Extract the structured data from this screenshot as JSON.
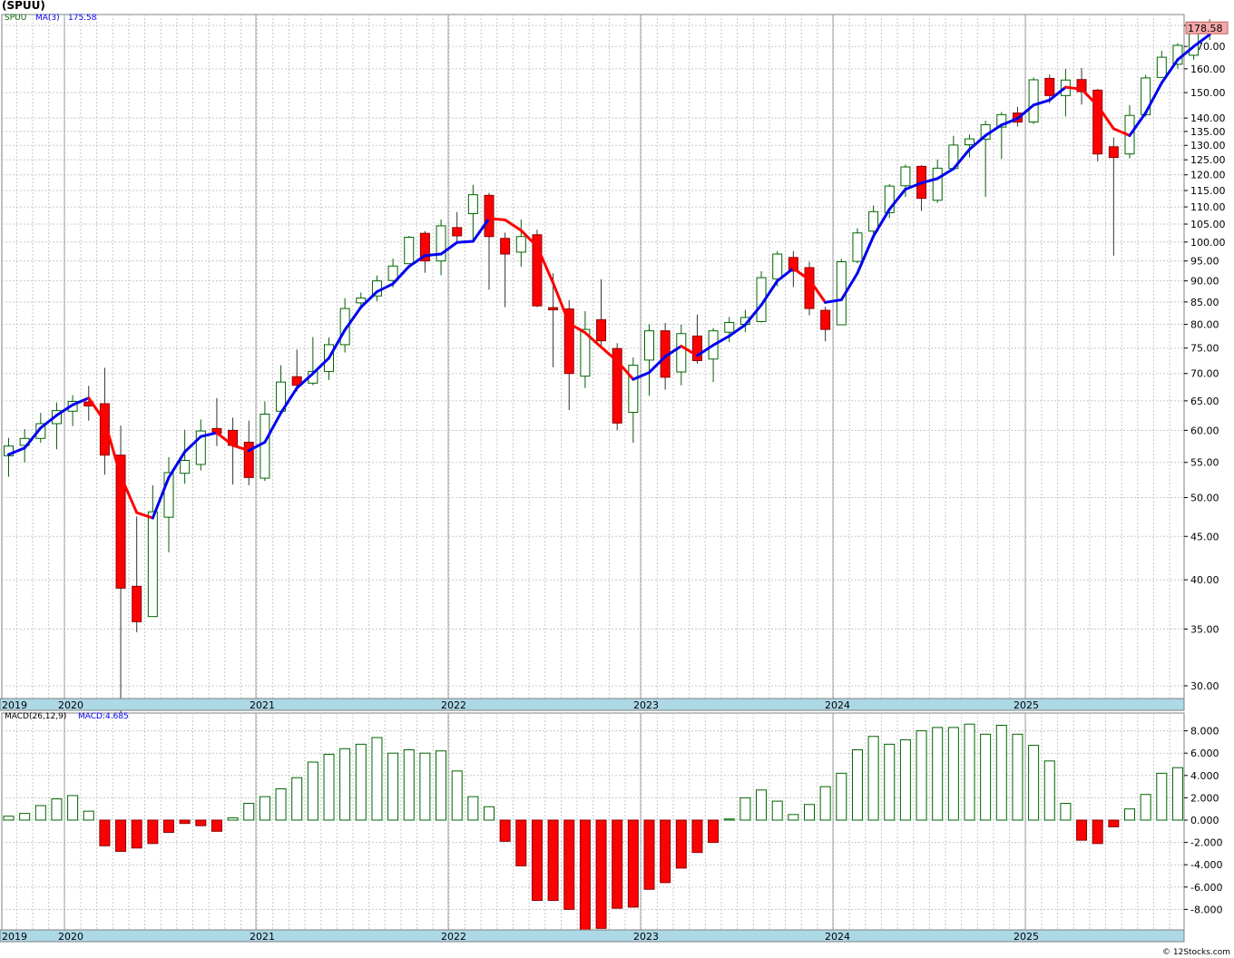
{
  "header": {
    "title": "(SPUU)",
    "ticker": "SPUU",
    "ma_label": "MA(3)",
    "ma_value": "175.58",
    "macd_label": "MACD(26,12,9)",
    "macd_value": "MACD:4.685",
    "last_price_label": "178.58",
    "copyright": "© 12Stocks.com"
  },
  "colors": {
    "up_candle_border": "#006400",
    "down_candle": "#ff0000",
    "ma_up": "#0000ee",
    "ma_down": "#ff0000",
    "grid": "#c8c8c8",
    "axis_band": "#add8e6",
    "price_tag": "#f4a8a8"
  },
  "chart_data": [
    {
      "type": "candlestick",
      "title": "(SPUU)",
      "scale": "log",
      "grid": true,
      "ylim": [
        28,
        185
      ],
      "y_ticks": [
        30,
        35,
        40,
        45,
        50,
        55,
        60,
        65,
        70,
        75,
        80,
        85,
        90,
        95,
        100,
        105,
        110,
        115,
        120,
        125,
        130,
        135,
        140,
        150,
        160,
        170,
        180
      ],
      "y_tick_labels": [
        "30.00",
        "35.00",
        "40.00",
        "45.00",
        "50.00",
        "55.00",
        "60.00",
        "65.00",
        "70.00",
        "75.00",
        "80.00",
        "85.00",
        "90.00",
        "95.00",
        "100.00",
        "105.00",
        "110.00",
        "115.00",
        "120.00",
        "125.00",
        "130.00",
        "135.00",
        "140.00",
        "150.00",
        "160.00",
        "170.00",
        "180.00"
      ],
      "x_labels": [
        "2019",
        "2020",
        "2021",
        "2022",
        "2023",
        "2024",
        "2025"
      ],
      "x_label_months": [
        -1,
        1,
        25,
        49,
        73,
        97,
        121
      ],
      "months": 146,
      "candles": [
        [
          1,
          56.0,
          57.5,
          58.8,
          52.9
        ],
        [
          2,
          57.6,
          58.7,
          60.2,
          55.0
        ],
        [
          3,
          58.7,
          61.1,
          62.9,
          58.0
        ],
        [
          4,
          61.1,
          63.3,
          64.7,
          57.0
        ],
        [
          5,
          63.2,
          64.9,
          66.0,
          60.7
        ],
        [
          6,
          64.8,
          64.1,
          67.7,
          61.6
        ],
        [
          7,
          64.5,
          56.1,
          71.1,
          53.2
        ],
        [
          8,
          56.1,
          39.1,
          60.8,
          27.8
        ],
        [
          9,
          39.3,
          35.7,
          47.5,
          34.7
        ],
        [
          10,
          36.2,
          48.1,
          51.7,
          45.0
        ],
        [
          11,
          47.4,
          53.5,
          55.8,
          43.1
        ],
        [
          12,
          53.4,
          55.3,
          60.1,
          51.9
        ],
        [
          13,
          54.7,
          59.9,
          61.8,
          53.8
        ],
        [
          14,
          60.3,
          59.5,
          65.5,
          57.5
        ],
        [
          15,
          60.0,
          57.6,
          62.1,
          51.8
        ],
        [
          16,
          58.1,
          52.8,
          61.6,
          51.7
        ],
        [
          17,
          52.7,
          62.7,
          64.9,
          52.3
        ],
        [
          18,
          63.2,
          68.4,
          71.6,
          62.9
        ],
        [
          19,
          69.4,
          67.8,
          74.7,
          66.7
        ],
        [
          20,
          68.2,
          70.4,
          77.3,
          67.8
        ],
        [
          21,
          70.4,
          75.7,
          77.2,
          68.8
        ],
        [
          22,
          75.7,
          83.5,
          85.9,
          74.1
        ],
        [
          23,
          84.8,
          85.9,
          87.2,
          83.4
        ],
        [
          24,
          86.4,
          90.0,
          91.3,
          85.2
        ],
        [
          25,
          90.1,
          93.7,
          95.6,
          88.4
        ],
        [
          26,
          94.3,
          101.3,
          101.7,
          94.7
        ],
        [
          27,
          102.4,
          95.0,
          103.0,
          92.0
        ],
        [
          28,
          95.0,
          104.5,
          106.3,
          91.4
        ],
        [
          29,
          104.0,
          101.7,
          108.5,
          100.2
        ],
        [
          30,
          108.0,
          113.7,
          116.8,
          100.4
        ],
        [
          31,
          113.5,
          101.5,
          114.3,
          87.9
        ],
        [
          32,
          101.0,
          96.8,
          102.6,
          83.8
        ],
        [
          33,
          97.3,
          101.5,
          106.3,
          93.5
        ],
        [
          34,
          102.0,
          84.1,
          103.4,
          83.8
        ],
        [
          35,
          83.7,
          83.2,
          91.9,
          71.2
        ],
        [
          36,
          83.4,
          70.0,
          85.4,
          63.4
        ],
        [
          37,
          69.5,
          78.9,
          82.9,
          67.3
        ],
        [
          38,
          81.0,
          76.5,
          90.4,
          75.1
        ],
        [
          39,
          74.9,
          61.2,
          76.0,
          60.0
        ],
        [
          40,
          63.0,
          71.6,
          73.1,
          58.0
        ],
        [
          41,
          72.6,
          78.6,
          80.0,
          65.9
        ],
        [
          42,
          78.6,
          69.3,
          80.3,
          67.0
        ],
        [
          43,
          70.3,
          78.0,
          79.9,
          67.8
        ],
        [
          44,
          77.5,
          72.5,
          82.1,
          71.9
        ],
        [
          45,
          72.8,
          78.6,
          79.2,
          68.4
        ],
        [
          46,
          78.3,
          80.4,
          81.6,
          76.2
        ],
        [
          47,
          80.0,
          81.5,
          83.2,
          78.3
        ],
        [
          48,
          80.6,
          90.8,
          92.4,
          80.4
        ],
        [
          49,
          90.5,
          96.8,
          97.6,
          88.7
        ],
        [
          50,
          95.9,
          92.4,
          97.6,
          88.5
        ],
        [
          51,
          93.3,
          83.5,
          94.8,
          82.0
        ],
        [
          52,
          83.1,
          78.9,
          83.9,
          76.4
        ],
        [
          53,
          79.9,
          94.8,
          95.5,
          79.9
        ],
        [
          54,
          94.9,
          102.5,
          103.8,
          94.4
        ],
        [
          55,
          103.0,
          108.6,
          110.4,
          102.0
        ],
        [
          56,
          108.3,
          116.4,
          117.0,
          106.7
        ],
        [
          57,
          116.5,
          122.6,
          123.4,
          113.0
        ],
        [
          58,
          122.8,
          112.6,
          123.2,
          108.8
        ],
        [
          59,
          112.0,
          122.2,
          125.1,
          111.2
        ],
        [
          60,
          122.1,
          130.1,
          133.4,
          121.4
        ],
        [
          61,
          130.2,
          132.3,
          133.9,
          125.8
        ],
        [
          62,
          132.2,
          137.5,
          139.0,
          113.0
        ],
        [
          63,
          136.6,
          141.3,
          142.3,
          125.3
        ],
        [
          64,
          141.9,
          138.5,
          144.3,
          136.8
        ],
        [
          65,
          138.5,
          155.3,
          156.3,
          137.8
        ],
        [
          66,
          155.9,
          148.8,
          157.5,
          145.7
        ],
        [
          67,
          148.8,
          155.2,
          159.9,
          140.6
        ],
        [
          68,
          155.4,
          150.4,
          160.4,
          145.2
        ],
        [
          69,
          151.0,
          127.0,
          151.5,
          124.5
        ],
        [
          70,
          129.5,
          125.8,
          132.8,
          96.4
        ],
        [
          71,
          127.0,
          141.0,
          145.0,
          125.5
        ],
        [
          72,
          141.3,
          156.1,
          157.4,
          140.6
        ],
        [
          73,
          156.3,
          165.1,
          168.0,
          156.2
        ],
        [
          74,
          162.0,
          170.5,
          171.5,
          160.0
        ],
        [
          75,
          166.0,
          181.0,
          182.0,
          164.0
        ],
        [
          76,
          178.0,
          178.6,
          183.0,
          173.0
        ]
      ],
      "candle_month_offset": 0,
      "ma_points": [
        [
          0,
          56.2
        ],
        [
          1,
          57.2
        ],
        [
          2,
          60.4
        ],
        [
          3,
          62.5
        ],
        [
          4,
          64.3
        ],
        [
          5,
          65.5
        ],
        [
          6,
          61.5
        ],
        [
          7,
          53.0
        ],
        [
          8,
          48.0
        ],
        [
          9,
          47.3
        ],
        [
          10,
          52.8
        ],
        [
          11,
          56.6
        ],
        [
          12,
          59.0
        ],
        [
          13,
          59.6
        ],
        [
          14,
          57.6
        ],
        [
          15,
          56.8
        ],
        [
          16,
          58.1
        ],
        [
          17,
          62.9
        ],
        [
          18,
          67.3
        ],
        [
          19,
          70.0
        ],
        [
          20,
          73.0
        ],
        [
          21,
          78.8
        ],
        [
          22,
          83.8
        ],
        [
          23,
          87.4
        ],
        [
          24,
          89.3
        ],
        [
          25,
          93.6
        ],
        [
          26,
          96.4
        ],
        [
          27,
          96.8
        ],
        [
          28,
          99.9
        ],
        [
          29,
          100.2
        ],
        [
          30,
          106.6
        ],
        [
          31,
          106.2
        ],
        [
          32,
          103.2
        ],
        [
          33,
          98.8
        ],
        [
          34,
          89.5
        ],
        [
          35,
          80.2
        ],
        [
          36,
          78.2
        ],
        [
          37,
          75.2
        ],
        [
          38,
          72.4
        ],
        [
          39,
          68.9
        ],
        [
          40,
          70.2
        ],
        [
          41,
          73.3
        ],
        [
          42,
          75.4
        ],
        [
          43,
          73.5
        ],
        [
          44,
          75.6
        ],
        [
          45,
          77.5
        ],
        [
          46,
          79.9
        ],
        [
          47,
          84.3
        ],
        [
          48,
          90.0
        ],
        [
          49,
          93.1
        ],
        [
          50,
          90.3
        ],
        [
          51,
          84.9
        ],
        [
          52,
          85.5
        ],
        [
          53,
          91.9
        ],
        [
          54,
          101.6
        ],
        [
          55,
          109.3
        ],
        [
          56,
          115.4
        ],
        [
          57,
          117.4
        ],
        [
          58,
          118.8
        ],
        [
          59,
          122.0
        ],
        [
          60,
          128.6
        ],
        [
          61,
          133.5
        ],
        [
          62,
          137.4
        ],
        [
          63,
          139.8
        ],
        [
          64,
          145.0
        ],
        [
          65,
          147.0
        ],
        [
          66,
          152.2
        ],
        [
          67,
          151.4
        ],
        [
          68,
          144.8
        ],
        [
          69,
          136.0
        ],
        [
          70,
          133.5
        ],
        [
          71,
          142.0
        ],
        [
          72,
          154.0
        ],
        [
          73,
          164.0
        ],
        [
          74,
          170.0
        ],
        [
          75,
          175.6
        ]
      ],
      "ma_point_month_offset": 0,
      "ma_color_mode": "slope"
    },
    {
      "type": "bar",
      "title": "MACD(26,12,9)",
      "ylim": [
        -10.2,
        9.3
      ],
      "y_ticks": [
        -8,
        -6,
        -4,
        -2,
        0,
        2,
        4,
        6,
        8
      ],
      "y_tick_labels": [
        "-8.000",
        "-6.000",
        "-4.000",
        "-2.000",
        "0.000",
        "2.000",
        "4.000",
        "6.000",
        "8.000"
      ],
      "x_labels": [
        "2019",
        "2020",
        "2021",
        "2022",
        "2023",
        "2024",
        "2025"
      ],
      "values": [
        0.35,
        0.6,
        1.3,
        1.9,
        2.2,
        0.8,
        -2.3,
        -2.8,
        -2.5,
        -2.1,
        -1.1,
        -0.3,
        -0.5,
        -1.0,
        0.2,
        1.5,
        2.1,
        2.8,
        3.8,
        5.2,
        5.9,
        6.4,
        6.8,
        7.4,
        6.0,
        6.3,
        6.0,
        6.2,
        4.4,
        2.1,
        1.2,
        -1.9,
        -4.1,
        -7.2,
        -7.2,
        -8.0,
        -10.0,
        -9.7,
        -7.9,
        -7.8,
        -6.2,
        -5.6,
        -4.3,
        -2.9,
        -2.0,
        0.1,
        2.0,
        2.7,
        1.7,
        0.5,
        1.4,
        3.0,
        4.2,
        6.3,
        7.5,
        6.8,
        7.2,
        8.0,
        8.3,
        8.3,
        8.6,
        7.7,
        8.5,
        7.7,
        6.7,
        5.3,
        1.5,
        -1.8,
        -2.1,
        -0.6,
        1.0,
        2.3,
        4.2,
        4.7
      ],
      "value_month_offset": 0
    }
  ]
}
